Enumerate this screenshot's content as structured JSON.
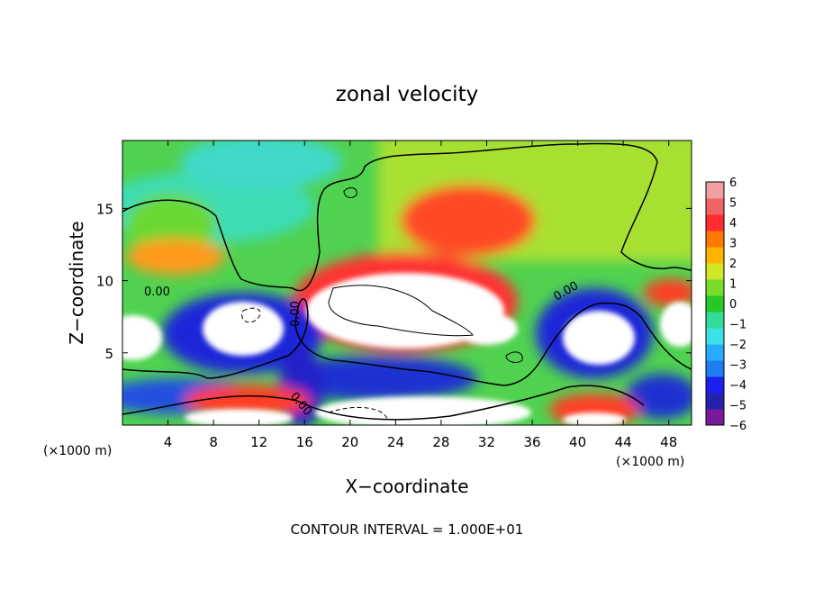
{
  "chart_data": {
    "type": "heatmap",
    "title": "zonal velocity",
    "xlabel": "X−coordinate",
    "ylabel": "Z−coordinate",
    "x_unit_left": "(×1000 m)",
    "x_unit_right": "(×1000 m)",
    "x_ticks": [
      4,
      8,
      12,
      16,
      20,
      24,
      28,
      32,
      36,
      40,
      44,
      48
    ],
    "y_ticks": [
      5,
      10,
      15
    ],
    "xlim": [
      0,
      50
    ],
    "ylim": [
      0,
      19.7
    ],
    "colorbar": {
      "ticks": [
        "6",
        "5",
        "4",
        "3",
        "2",
        "1",
        "0",
        "−1",
        "−2",
        "−3",
        "−4",
        "−5",
        "−6"
      ],
      "range": [
        -6,
        6
      ],
      "colors": [
        "#7a1a9a",
        "#2222aa",
        "#1e1ef0",
        "#1e7df0",
        "#28aaff",
        "#3ce1e6",
        "#32dc96",
        "#28c828",
        "#78dc28",
        "#d2e628",
        "#ffb400",
        "#ff7800",
        "#ff2d2d",
        "#f06464",
        "#f0a0a0"
      ]
    },
    "contour_labels": [
      "0.00",
      "0.00",
      "0.00",
      "0.00"
    ],
    "footnote": "CONTOUR INTERVAL = 1.000E+01"
  }
}
